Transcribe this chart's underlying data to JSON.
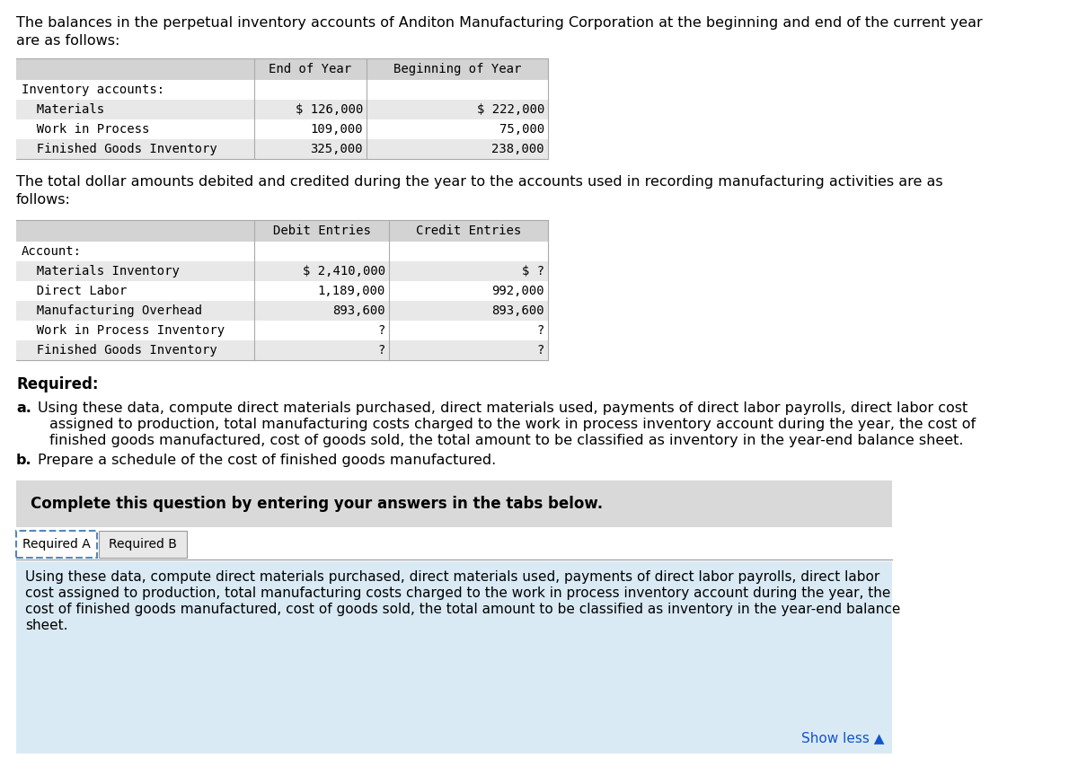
{
  "title_text1": "The balances in the perpetual inventory accounts of Anditon Manufacturing Corporation at the beginning and end of the current year",
  "title_text2": "are as follows:",
  "table1_header_col1": "End of Year",
  "table1_header_col2": "Beginning of Year",
  "table1_rows": [
    [
      "Inventory accounts:",
      "",
      ""
    ],
    [
      "  Materials",
      "$ 126,000",
      "$ 222,000"
    ],
    [
      "  Work in Process",
      "109,000",
      "75,000"
    ],
    [
      "  Finished Goods Inventory",
      "325,000",
      "238,000"
    ]
  ],
  "mid_text1": "The total dollar amounts debited and credited during the year to the accounts used in recording manufacturing activities are as",
  "mid_text2": "follows:",
  "table2_header_col1": "Debit Entries",
  "table2_header_col2": "Credit Entries",
  "table2_rows": [
    [
      "Account:",
      "",
      ""
    ],
    [
      "  Materials Inventory",
      "$ 2,410,000",
      "$ ?"
    ],
    [
      "  Direct Labor",
      "1,189,000",
      "992,000"
    ],
    [
      "  Manufacturing Overhead",
      "893,600",
      "893,600"
    ],
    [
      "  Work in Process Inventory",
      "?",
      "?"
    ],
    [
      "  Finished Goods Inventory",
      "?",
      "?"
    ]
  ],
  "required_header": "Required:",
  "required_a_label": "a.",
  "required_a_text": "Using these data, compute direct materials purchased, direct materials used, payments of direct labor payrolls, direct labor cost",
  "required_a_text2": "assigned to production, total manufacturing costs charged to the work in process inventory account during the year, the cost of",
  "required_a_text3": "finished goods manufactured, cost of goods sold, the total amount to be classified as inventory in the year-end balance sheet.",
  "required_b_label": "b.",
  "required_b_text": "Prepare a schedule of the cost of finished goods manufactured.",
  "complete_box_text": "Complete this question by entering your answers in the tabs below.",
  "tab1": "Required A",
  "tab2": "Required B",
  "bottom_line1": "Using these data, compute direct materials purchased, direct materials used, payments of direct labor payrolls, direct labor",
  "bottom_line2": "cost assigned to production, total manufacturing costs charged to the work in process inventory account during the year, the",
  "bottom_line3": "cost of finished goods manufactured, cost of goods sold, the total amount to be classified as inventory in the year-end balance",
  "bottom_line4": "sheet.",
  "show_less": "Show less ▲",
  "bg_color": "#ffffff",
  "table_header_bg": "#d3d3d3",
  "table_row_alt_bg": "#e8e8e8",
  "table_row_bg": "#f5f5f5",
  "complete_box_bg": "#d9d9d9",
  "bottom_panel_bg": "#daeaf5",
  "tab_active_bg": "#ffffff",
  "tab_inactive_bg": "#e8e8e8",
  "tab_active_border": "#5588bb",
  "tab_border_color": "#999999",
  "show_less_color": "#1155cc",
  "mono_font": "DejaVu Sans Mono",
  "sans_font": "DejaVu Sans",
  "line_color": "#aaaaaa"
}
